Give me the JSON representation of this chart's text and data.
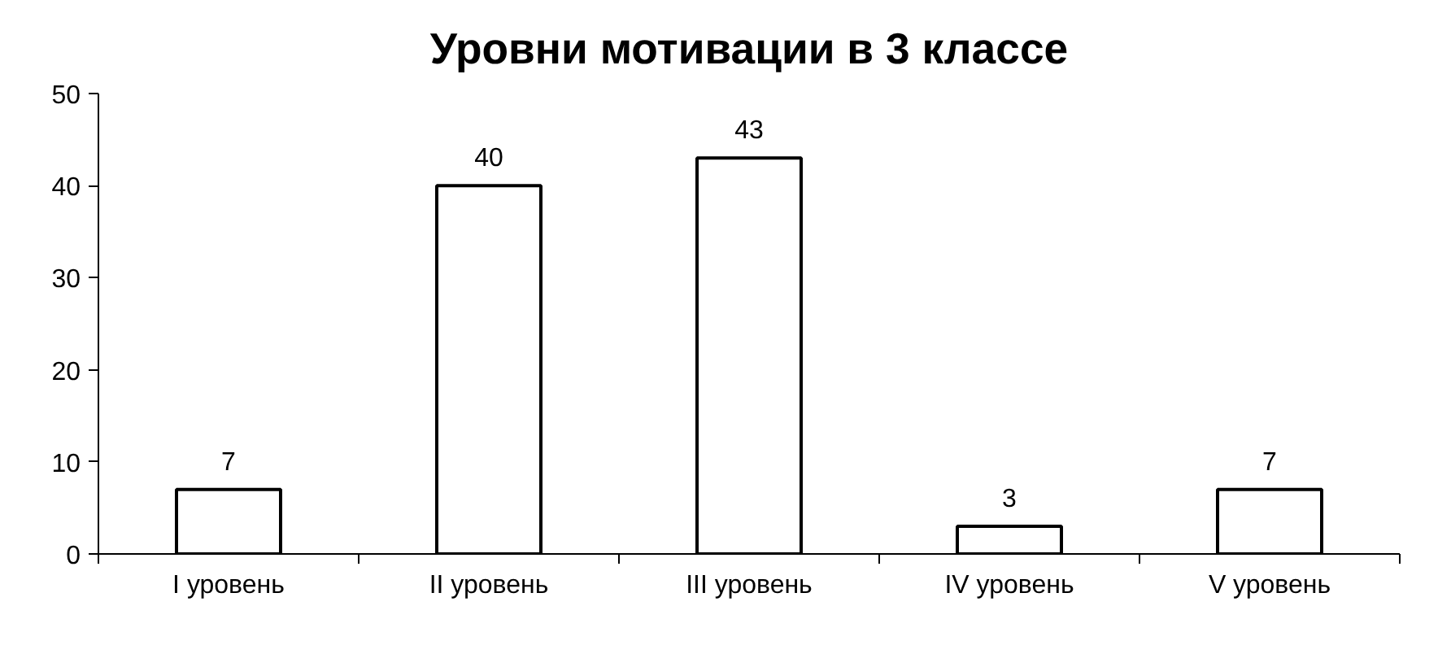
{
  "chart_data": {
    "type": "bar",
    "title": "Уровни мотивации в 3 классе",
    "categories": [
      "I уровень",
      "II уровень",
      "III уровень",
      "IV уровень",
      "V уровень"
    ],
    "values": [
      7,
      40,
      43,
      3,
      7
    ],
    "color": "#ffffff",
    "ylim": [
      0,
      50
    ],
    "yticks": [
      0,
      10,
      20,
      30,
      40,
      50
    ],
    "grid": false,
    "data_labels": true
  }
}
